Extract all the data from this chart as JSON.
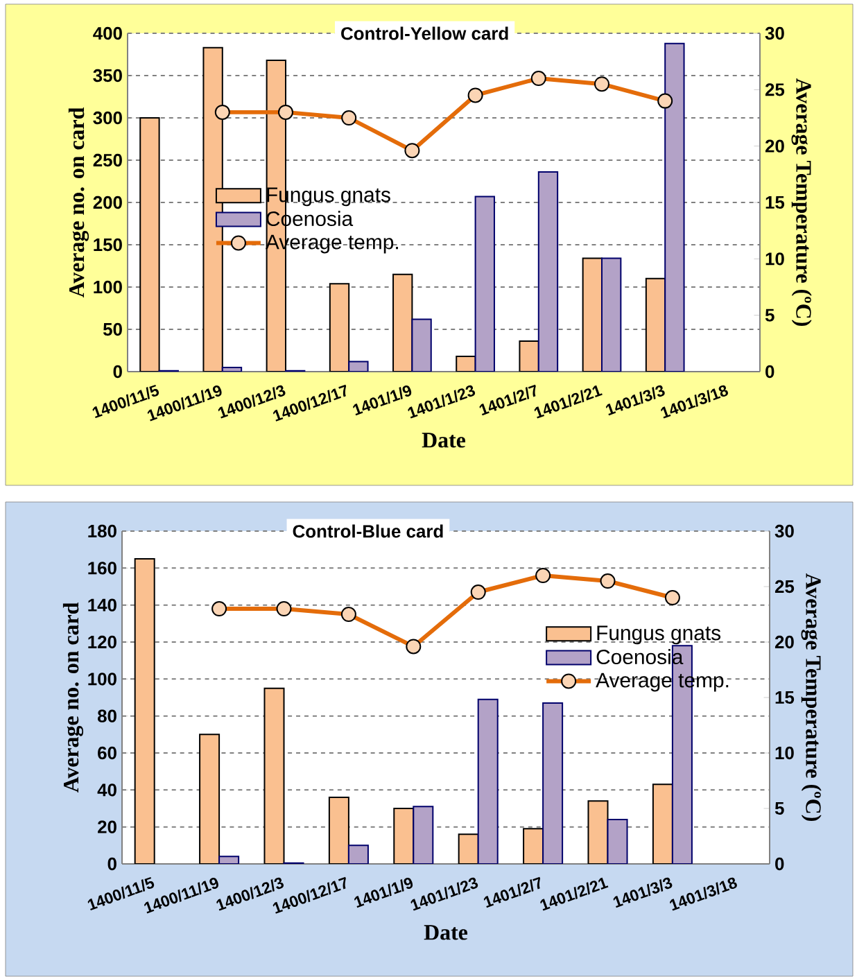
{
  "chart_data": [
    {
      "type": "bar",
      "title": "Control-Yellow card",
      "xlabel": "Date",
      "ylabel": "Average no. on card",
      "y2label": "Average Temperature (ºC)",
      "categories": [
        "1400/11/5",
        "1400/11/19",
        "1400/12/3",
        "1400/12/17",
        "1401/1/9",
        "1401/1/23",
        "1401/2/7",
        "1401/2/21",
        "1401/3/3",
        "1401/3/18"
      ],
      "series": [
        {
          "name": "Fungus gnats",
          "color": "#fac090",
          "values": [
            300,
            383,
            368,
            104,
            115,
            18,
            36,
            134,
            110,
            null
          ]
        },
        {
          "name": "Coenosia",
          "color": "#b3a2c7",
          "values": [
            1,
            5,
            1,
            12,
            62,
            207,
            236,
            134,
            388,
            null
          ]
        },
        {
          "name": "Average temp.",
          "type": "line",
          "axis": "y2",
          "marker": "circle",
          "color": "#e46c0a",
          "values": [
            null,
            23,
            23,
            22.5,
            19.6,
            24.5,
            26,
            25.5,
            24,
            null
          ]
        }
      ],
      "ylim": [
        0,
        400
      ],
      "yticks": [
        0,
        50,
        100,
        150,
        200,
        250,
        300,
        350,
        400
      ],
      "y2lim": [
        0,
        30
      ],
      "y2ticks": [
        0,
        5,
        10,
        15,
        20,
        25,
        30
      ],
      "grid": "y",
      "legend": "center"
    },
    {
      "type": "bar",
      "title": "Control-Blue card",
      "xlabel": "Date",
      "ylabel": "Average no. on card",
      "y2label": "Average Temperature (ºC)",
      "categories": [
        "1400/11/5",
        "1400/11/19",
        "1400/12/3",
        "1400/12/17",
        "1401/1/9",
        "1401/1/23",
        "1401/2/7",
        "1401/2/21",
        "1401/3/3",
        "1401/3/18"
      ],
      "series": [
        {
          "name": "Fungus gnats",
          "color": "#fac090",
          "values": [
            165,
            70,
            95,
            36,
            30,
            16,
            19,
            34,
            43,
            null
          ]
        },
        {
          "name": "Coenosia",
          "color": "#b3a2c7",
          "values": [
            null,
            4,
            0.5,
            10,
            31,
            89,
            87,
            24,
            118,
            null
          ]
        },
        {
          "name": "Average temp.",
          "type": "line",
          "axis": "y2",
          "marker": "circle",
          "color": "#e46c0a",
          "values": [
            null,
            23,
            23,
            22.5,
            19.6,
            24.5,
            26,
            25.5,
            24,
            null
          ]
        }
      ],
      "ylim": [
        0,
        180
      ],
      "yticks": [
        0,
        20,
        40,
        60,
        80,
        100,
        120,
        140,
        160,
        180
      ],
      "y2lim": [
        0,
        30
      ],
      "y2ticks": [
        0,
        5,
        10,
        15,
        20,
        25,
        30
      ],
      "grid": "y",
      "legend": "right"
    }
  ]
}
